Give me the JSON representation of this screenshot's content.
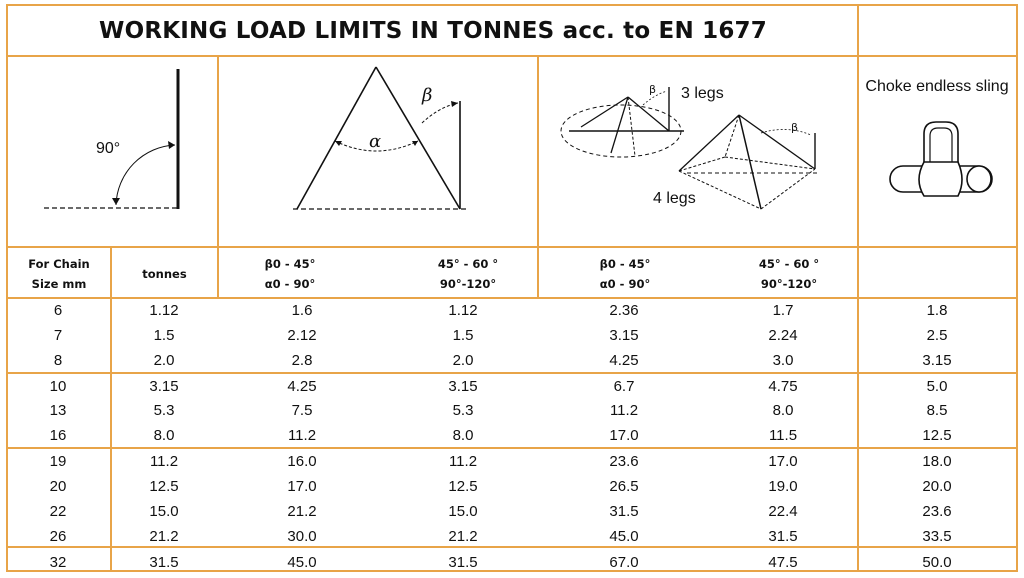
{
  "title": "WORKING LOAD LIMITS IN TONNES acc. to EN 1677",
  "diagrams": {
    "angle_90_label": "90°",
    "alpha_symbol": "α",
    "beta_symbol": "β",
    "beta_small": "β",
    "three_legs_label": "3 legs",
    "four_legs_label": "4 legs",
    "choke_label": "Choke endless sling"
  },
  "headers": {
    "chain_size": [
      "For Chain",
      "Size mm"
    ],
    "tonnes": "tonnes",
    "two_leg_a": [
      "β0 - 45°",
      "α0 - 90°"
    ],
    "two_leg_b": [
      "45° - 60 °",
      "90°-120°"
    ],
    "multi_leg_a": [
      "β0 - 45°",
      "α0 - 90°"
    ],
    "multi_leg_b": [
      "45° - 60 °",
      "90°-120°"
    ]
  },
  "rows": [
    [
      "6",
      "1.12",
      "1.6",
      "1.12",
      "2.36",
      "1.7",
      "1.8"
    ],
    [
      "7",
      "1.5",
      "2.12",
      "1.5",
      "3.15",
      "2.24",
      "2.5"
    ],
    [
      "8",
      "2.0",
      "2.8",
      "2.0",
      "4.25",
      "3.0",
      "3.15"
    ],
    [
      "10",
      "3.15",
      "4.25",
      "3.15",
      "6.7",
      "4.75",
      "5.0"
    ],
    [
      "13",
      "5.3",
      "7.5",
      "5.3",
      "11.2",
      "8.0",
      "8.5"
    ],
    [
      "16",
      "8.0",
      "11.2",
      "8.0",
      "17.0",
      "11.5",
      "12.5"
    ],
    [
      "19",
      "11.2",
      "16.0",
      "11.2",
      "23.6",
      "17.0",
      "18.0"
    ],
    [
      "20",
      "12.5",
      "17.0",
      "12.5",
      "26.5",
      "19.0",
      "20.0"
    ],
    [
      "22",
      "15.0",
      "21.2",
      "15.0",
      "31.5",
      "22.4",
      "23.6"
    ],
    [
      "26",
      "21.2",
      "30.0",
      "21.2",
      "45.0",
      "31.5",
      "33.5"
    ],
    [
      "32",
      "31.5",
      "45.0",
      "31.5",
      "67.0",
      "47.5",
      "50.0"
    ]
  ],
  "row_groups": [
    3,
    3,
    4,
    1
  ],
  "colors": {
    "border": "#e8a448",
    "text": "#111111"
  }
}
